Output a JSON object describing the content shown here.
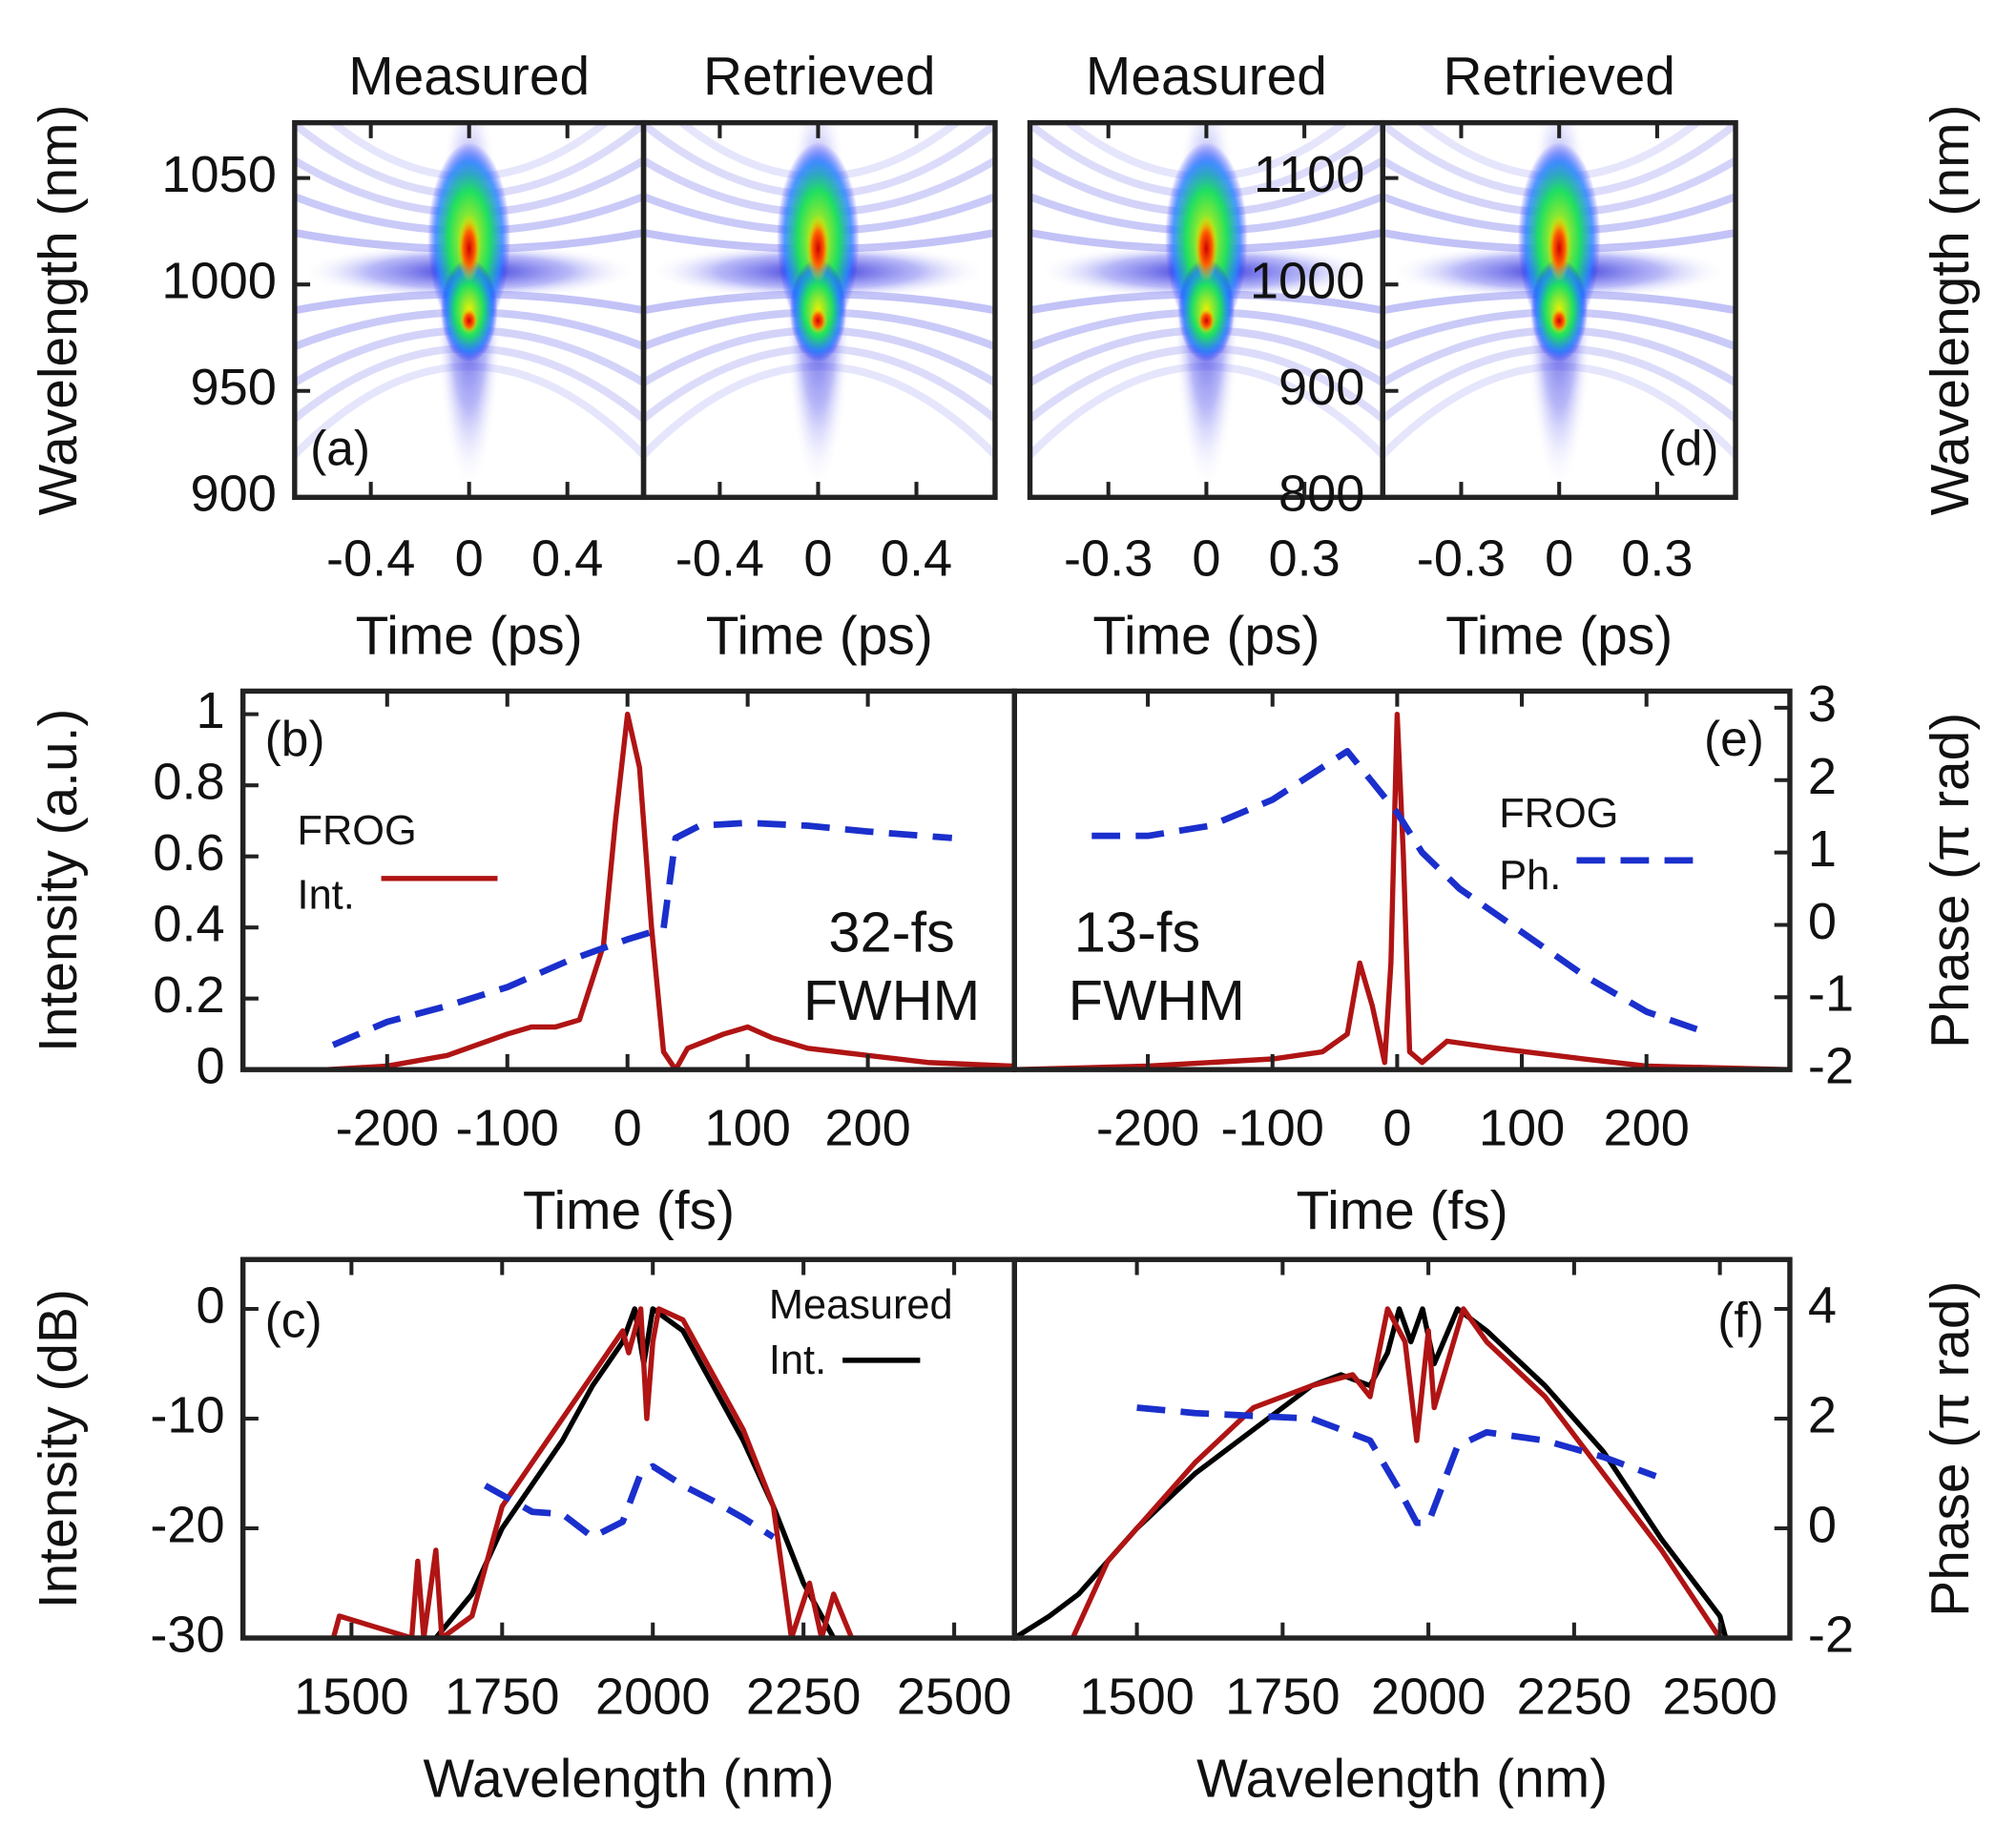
{
  "chart_data": [
    {
      "type": "heatmap",
      "title": "Measured",
      "ylabel": "Wavelength (nm)",
      "xlabel": "Time (ps)",
      "panel_label": "(a)",
      "xlim": [
        -0.71,
        0.71
      ],
      "ylim": [
        900,
        1076
      ],
      "xticks": [
        -0.4,
        0,
        0.4
      ],
      "yticks": [
        900,
        950,
        1000,
        1050
      ]
    },
    {
      "type": "heatmap",
      "title": "Retrieved",
      "xlabel": "Time (ps)",
      "xlim": [
        -0.71,
        0.72
      ],
      "ylim": [
        900,
        1076
      ],
      "xticks": [
        -0.4,
        0,
        0.4
      ]
    },
    {
      "type": "heatmap",
      "title": "Measured",
      "xlabel": "Time (ps)",
      "xlim": [
        -0.54,
        0.54
      ],
      "ylim": [
        800,
        1152
      ],
      "xticks": [
        -0.3,
        0,
        0.3
      ]
    },
    {
      "type": "heatmap",
      "title": "Retrieved",
      "ylabel": "Wavelength (nm)",
      "xlabel": "Time (ps)",
      "panel_label": "(d)",
      "xlim": [
        -0.54,
        0.54
      ],
      "ylim": [
        800,
        1152
      ],
      "xticks": [
        -0.3,
        0,
        0.3
      ],
      "yticks": [
        800,
        900,
        1000,
        1100
      ]
    },
    {
      "type": "line",
      "ylabel": "Intensity (a.u.)",
      "xlabel": "Time (fs)",
      "panel_label": "(b)",
      "xlim": [
        -320,
        322
      ],
      "ylim": [
        0,
        1.065
      ],
      "y2lim": [
        -2,
        3.23
      ],
      "xticks": [
        -200,
        -100,
        0,
        100,
        200
      ],
      "yticks": [
        0,
        0.2,
        0.4,
        0.6,
        0.8,
        1
      ],
      "legend": {
        "lines": [
          "FROG",
          "Int."
        ],
        "series": 0
      },
      "annotations": [
        "32-fs",
        "FWHM"
      ],
      "series": [
        {
          "color": "#b01414",
          "x": [
            -320,
            -250,
            -200,
            -150,
            -100,
            -80,
            -60,
            -40,
            -20,
            -10,
            0,
            10,
            20,
            30,
            40,
            50,
            80,
            100,
            120,
            150,
            200,
            250,
            320
          ],
          "values": [
            0,
            0,
            0.01,
            0.04,
            0.1,
            0.12,
            0.12,
            0.14,
            0.35,
            0.7,
            1.0,
            0.85,
            0.4,
            0.05,
            0,
            0.06,
            0.1,
            0.12,
            0.09,
            0.06,
            0.04,
            0.02,
            0.01
          ]
        },
        {
          "color": "#1a2fcc",
          "dashed": true,
          "axis": "y2",
          "x": [
            -245,
            -200,
            -150,
            -100,
            -50,
            -20,
            0,
            30,
            40,
            60,
            100,
            150,
            200,
            270
          ],
          "values": [
            -1.66,
            -1.34,
            -1.12,
            -0.86,
            -0.5,
            -0.32,
            -0.2,
            -0.05,
            1.2,
            1.37,
            1.41,
            1.37,
            1.29,
            1.2
          ]
        }
      ]
    },
    {
      "type": "line",
      "ylabel": "Phase (π rad)",
      "xlabel": "Time (fs)",
      "panel_label": "(e)",
      "xlim": [
        -307,
        315
      ],
      "ylim": [
        0,
        1.065
      ],
      "y2lim": [
        -2,
        3.23
      ],
      "xticks": [
        -200,
        -100,
        0,
        100,
        200
      ],
      "y2ticks": [
        -2,
        -1,
        0,
        1,
        2,
        3
      ],
      "legend": {
        "lines": [
          "FROG",
          "Ph."
        ],
        "series": 1
      },
      "annotations": [
        "13-fs",
        "FWHM"
      ],
      "series": [
        {
          "color": "#b01414",
          "x": [
            -307,
            -200,
            -100,
            -60,
            -40,
            -30,
            -20,
            -10,
            -5,
            0,
            5,
            10,
            20,
            40,
            80,
            150,
            200,
            315
          ],
          "values": [
            0,
            0.01,
            0.03,
            0.05,
            0.1,
            0.3,
            0.18,
            0.02,
            0.3,
            1.0,
            0.6,
            0.05,
            0.02,
            0.08,
            0.06,
            0.03,
            0.01,
            0
          ]
        },
        {
          "color": "#1a2fcc",
          "dashed": true,
          "axis": "y2",
          "x": [
            -245,
            -200,
            -150,
            -100,
            -40,
            0,
            20,
            50,
            100,
            150,
            200,
            250
          ],
          "values": [
            1.23,
            1.23,
            1.37,
            1.73,
            2.4,
            1.55,
            1.0,
            0.5,
            -0.1,
            -0.7,
            -1.2,
            -1.5
          ]
        }
      ]
    },
    {
      "type": "line",
      "ylabel": "Intensity (dB)",
      "xlabel": "Wavelength (nm)",
      "panel_label": "(c)",
      "xlim": [
        1320,
        2600
      ],
      "ylim": [
        -30,
        4.5
      ],
      "y2lim": [
        -2,
        4.9
      ],
      "xticks": [
        1500,
        1750,
        2000,
        2250,
        2500
      ],
      "yticks": [
        -30,
        -20,
        -10,
        0
      ],
      "legend": {
        "lines": [
          "Measured",
          "Int."
        ],
        "series": 0
      },
      "series": [
        {
          "color": "#000000",
          "x": [
            1640,
            1700,
            1750,
            1800,
            1850,
            1900,
            1950,
            1970,
            1985,
            2000,
            2050,
            2100,
            2150,
            2200,
            2250,
            2300
          ],
          "values": [
            -30,
            -26,
            -20,
            -16,
            -12,
            -7,
            -3,
            0,
            -5,
            0,
            -2,
            -7,
            -12,
            -18,
            -25,
            -30
          ]
        },
        {
          "color": "#b01414",
          "x": [
            1470,
            1480,
            1600,
            1610,
            1620,
            1640,
            1650,
            1700,
            1750,
            1800,
            1850,
            1900,
            1950,
            1960,
            1980,
            1990,
            2000,
            2010,
            2050,
            2100,
            2150,
            2200,
            2230,
            2260,
            2280,
            2300,
            2330
          ],
          "values": [
            -30,
            -28,
            -30,
            -23,
            -30,
            -22,
            -30,
            -28,
            -18,
            -14,
            -10,
            -6,
            -2,
            -4,
            0,
            -10,
            -3,
            0,
            -1,
            -6,
            -11,
            -18,
            -30,
            -25,
            -30,
            -26,
            -30
          ]
        },
        {
          "color": "#1a2fcc",
          "dashed": true,
          "axis": "y2",
          "x": [
            1722,
            1800,
            1850,
            1900,
            1950,
            1980,
            2000,
            2050,
            2100,
            2150,
            2200
          ],
          "values": [
            0.78,
            0.3,
            0.26,
            -0.16,
            0.12,
            1.0,
            1.13,
            0.78,
            0.5,
            0.19,
            -0.16
          ]
        }
      ]
    },
    {
      "type": "line",
      "ylabel": "Phase (π rad)",
      "xlabel": "Wavelength (nm)",
      "panel_label": "(f)",
      "xlim": [
        1290,
        2620
      ],
      "ylim": [
        -30,
        4.5
      ],
      "y2lim": [
        -2,
        4.9
      ],
      "xticks": [
        1500,
        1750,
        2000,
        2250,
        2500
      ],
      "y2ticks": [
        -2,
        0,
        2,
        4
      ],
      "series": [
        {
          "color": "#000000",
          "x": [
            1290,
            1350,
            1400,
            1500,
            1600,
            1700,
            1800,
            1850,
            1900,
            1930,
            1950,
            1970,
            1990,
            2010,
            2050,
            2100,
            2200,
            2300,
            2400,
            2500,
            2510
          ],
          "values": [
            -30,
            -28,
            -26,
            -20,
            -15,
            -11,
            -7,
            -6,
            -7,
            -4,
            0,
            -3,
            0,
            -5,
            0,
            -2,
            -7,
            -13,
            -21,
            -28,
            -30
          ]
        },
        {
          "color": "#b01414",
          "x": [
            1390,
            1450,
            1500,
            1600,
            1700,
            1800,
            1870,
            1900,
            1930,
            1960,
            1980,
            2000,
            2010,
            2060,
            2100,
            2200,
            2300,
            2400,
            2500
          ],
          "values": [
            -30,
            -23,
            -20,
            -14,
            -9,
            -7,
            -6,
            -8,
            0,
            -3,
            -12,
            -2,
            -9,
            0,
            -3,
            -8,
            -15,
            -22,
            -30
          ]
        },
        {
          "color": "#1a2fcc",
          "dashed": true,
          "axis": "y2",
          "x": [
            1500,
            1600,
            1700,
            1800,
            1900,
            1950,
            1980,
            2000,
            2050,
            2100,
            2200,
            2300,
            2390
          ],
          "values": [
            2.2,
            2.1,
            2.05,
            2.0,
            1.6,
            0.7,
            0.1,
            0.1,
            1.5,
            1.75,
            1.6,
            1.3,
            0.95
          ]
        }
      ]
    }
  ]
}
